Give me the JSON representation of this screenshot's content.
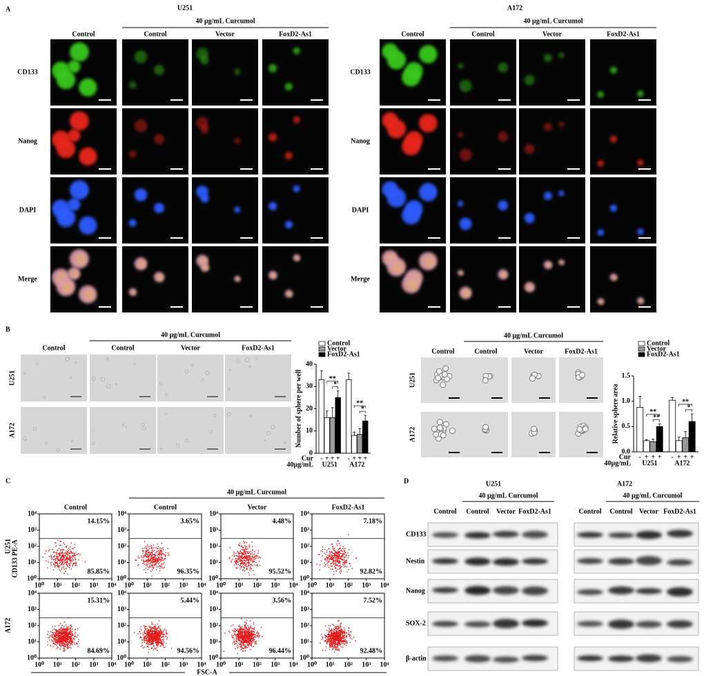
{
  "panel_a": {
    "label": "A",
    "groups": [
      {
        "title": "U251",
        "treatment": "40 μg/mL Curcumol",
        "columns": [
          "Control",
          "Control",
          "Vector",
          "FoxD2-As1"
        ],
        "rows": [
          "CD133",
          "Nanog",
          "DAPI",
          "Merge"
        ]
      },
      {
        "title": "A172",
        "treatment": "40 μg/mL Curcumol",
        "columns": [
          "Control",
          "Control",
          "Vector",
          "FoxD2-As1"
        ],
        "rows": [
          "CD133",
          "Nanog",
          "DAPI",
          "Merge"
        ]
      }
    ]
  },
  "panel_b": {
    "label": "B",
    "image_sets": [
      {
        "treatment": "40 μg/mL Curcumol",
        "columns": [
          "Control",
          "Control",
          "Vector",
          "FoxD2-As1"
        ],
        "rows": [
          "U251",
          "A172"
        ]
      },
      {
        "treatment": "40 μg/mL Curcumol",
        "columns": [
          "Control",
          "Control",
          "Vector",
          "FoxD2-As1"
        ],
        "rows": [
          "U251",
          "A172"
        ]
      }
    ]
  },
  "chart_data": [
    {
      "type": "bar",
      "y_label": "Number of sphere per well",
      "ylim": [
        0,
        40
      ],
      "yticks": [
        0,
        10,
        20,
        30,
        40
      ],
      "groups": [
        "U251",
        "A172"
      ],
      "treatment_label": "Cur",
      "dose_label": "40μg/mL",
      "legend": [
        {
          "name": "Control",
          "color": "#ffffff"
        },
        {
          "name": "Vector",
          "color": "#999999"
        },
        {
          "name": "FoxD2-As1",
          "color": "#000000"
        }
      ],
      "bars": [
        {
          "cur": "-",
          "color": "#ffffff",
          "values": [
            33,
            33
          ],
          "errors": [
            4,
            3
          ]
        },
        {
          "cur": "+",
          "color": "#ffffff",
          "values": [
            16,
            8
          ],
          "errors": [
            3,
            1.5
          ]
        },
        {
          "cur": "+",
          "color": "#999999",
          "values": [
            16,
            8.5
          ],
          "errors": [
            4.5,
            2.5
          ]
        },
        {
          "cur": "+",
          "color": "#000000",
          "values": [
            25,
            14.5
          ],
          "errors": [
            3,
            2.5
          ]
        }
      ],
      "significance": [
        {
          "group": 0,
          "from": 1,
          "to": 3,
          "label": "**"
        },
        {
          "group": 0,
          "from": 2,
          "to": 3,
          "label": "*"
        },
        {
          "group": 1,
          "from": 1,
          "to": 3,
          "label": "**"
        },
        {
          "group": 1,
          "from": 2,
          "to": 3,
          "label": "*"
        }
      ]
    },
    {
      "type": "bar",
      "y_label": "Relative sphere area",
      "ylim": [
        0,
        1.5
      ],
      "yticks": [
        {
          "value": 0,
          "label": "0.0"
        },
        {
          "value": 0.5,
          "label": "0.5"
        },
        {
          "value": 1,
          "label": "1.0"
        },
        {
          "value": 1.5,
          "label": "1.5"
        }
      ],
      "groups": [
        "U251",
        "A172"
      ],
      "treatment_label": "Cur",
      "dose_label": "40μg/mL",
      "legend": [
        {
          "name": "Control",
          "color": "#ffffff"
        },
        {
          "name": "Vector",
          "color": "#999999"
        },
        {
          "name": "FoxD2-As1",
          "color": "#000000"
        }
      ],
      "bars": [
        {
          "cur": "-",
          "color": "#ffffff",
          "values": [
            0.88,
            1.02
          ],
          "errors": [
            0.22,
            0.05
          ]
        },
        {
          "cur": "+",
          "color": "#ffffff",
          "values": [
            0.22,
            0.22
          ],
          "errors": [
            0.02,
            0.07
          ]
        },
        {
          "cur": "+",
          "color": "#999999",
          "values": [
            0.2,
            0.28
          ],
          "errors": [
            0.05,
            0.12
          ]
        },
        {
          "cur": "+",
          "color": "#000000",
          "values": [
            0.5,
            0.6
          ],
          "errors": [
            0.05,
            0.15
          ]
        }
      ],
      "significance": [
        {
          "group": 0,
          "from": 1,
          "to": 3,
          "label": "**"
        },
        {
          "group": 0,
          "from": 2,
          "to": 3,
          "label": "**"
        },
        {
          "group": 1,
          "from": 1,
          "to": 3,
          "label": "**"
        },
        {
          "group": 1,
          "from": 2,
          "to": 3,
          "label": "*"
        }
      ]
    }
  ],
  "panel_c": {
    "label": "C",
    "treatment": "40 μg/mL Curcumol",
    "columns": [
      "Control",
      "Control",
      "Vector",
      "FoxD2-As1"
    ],
    "rows": [
      "U251",
      "A172"
    ],
    "y_label": "CD133 PE-A",
    "x_label": "FSC-A",
    "log_scale": true,
    "xlim": [
      1,
      10000
    ],
    "ylim": [
      1,
      10000
    ],
    "xticks": [
      {
        "value": 1,
        "label": "10⁰"
      },
      {
        "value": 10,
        "label": "10¹"
      },
      {
        "value": 100,
        "label": "10²"
      },
      {
        "value": 1000,
        "label": "10³"
      },
      {
        "value": 10000,
        "label": "10⁴"
      }
    ],
    "yticks": [
      {
        "value": 1,
        "label": "10⁰"
      },
      {
        "value": 10,
        "label": "10¹"
      },
      {
        "value": 100,
        "label": "10²"
      },
      {
        "value": 1000,
        "label": "10³"
      },
      {
        "value": 10000,
        "label": "10⁴"
      }
    ],
    "quadrants": [
      [
        {
          "upper": "14.15%",
          "lower": "85.85%"
        },
        {
          "upper": "3.65%",
          "lower": "96.35%"
        },
        {
          "upper": "4.48%",
          "lower": "95.52%"
        },
        {
          "upper": "7.18%",
          "lower": "92.82%"
        }
      ],
      [
        {
          "upper": "15.31%",
          "lower": "84.69%"
        },
        {
          "upper": "5.44%",
          "lower": "94.56%"
        },
        {
          "upper": "3.56%",
          "lower": "96.44%"
        },
        {
          "upper": "7.52%",
          "lower": "92.48%"
        }
      ]
    ]
  },
  "panel_d": {
    "label": "D",
    "rows": [
      "CD133",
      "Nestin",
      "Nanog",
      "SOX-2",
      "β-actin"
    ],
    "groups": [
      {
        "title": "U251",
        "treatment": "40 μg/mL Curcumol",
        "columns": [
          "Control",
          "Control",
          "Vector",
          "FoxD2-As1"
        ]
      },
      {
        "title": "A172",
        "treatment": "40 μg/mL Curcumol",
        "columns": [
          "Control",
          "Control",
          "Vector",
          "FoxD2-As1"
        ]
      }
    ]
  }
}
